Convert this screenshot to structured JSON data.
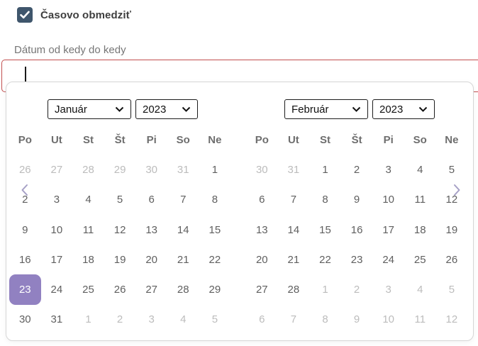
{
  "checkbox": {
    "label": "Časovo obmedziť",
    "checked": true
  },
  "field": {
    "label": "Dátum od kedy do kedy",
    "value": "",
    "placeholder": ""
  },
  "colors": {
    "checkbox_bg": "#3f566c",
    "input_error_border": "#c14f4f",
    "selected_day_bg": "#9181c1",
    "nav_chevron": "#a6a0c6",
    "muted_day": "#bcbcbc",
    "day_text": "#5f5f5f"
  },
  "datepicker": {
    "prev_label": "previous month",
    "next_label": "next month",
    "day_headers": [
      "Po",
      "Ut",
      "St",
      "Št",
      "Pi",
      "So",
      "Ne"
    ],
    "calendars": [
      {
        "month": "Január",
        "year": "2023",
        "weeks": [
          [
            {
              "day": "26",
              "outside": true
            },
            {
              "day": "27",
              "outside": true
            },
            {
              "day": "28",
              "outside": true
            },
            {
              "day": "29",
              "outside": true
            },
            {
              "day": "30",
              "outside": true
            },
            {
              "day": "31",
              "outside": true
            },
            {
              "day": "1"
            }
          ],
          [
            {
              "day": "2"
            },
            {
              "day": "3"
            },
            {
              "day": "4"
            },
            {
              "day": "5"
            },
            {
              "day": "6"
            },
            {
              "day": "7"
            },
            {
              "day": "8"
            }
          ],
          [
            {
              "day": "9"
            },
            {
              "day": "10"
            },
            {
              "day": "11"
            },
            {
              "day": "12"
            },
            {
              "day": "13"
            },
            {
              "day": "14"
            },
            {
              "day": "15"
            }
          ],
          [
            {
              "day": "16"
            },
            {
              "day": "17"
            },
            {
              "day": "18"
            },
            {
              "day": "19"
            },
            {
              "day": "20"
            },
            {
              "day": "21"
            },
            {
              "day": "22"
            }
          ],
          [
            {
              "day": "23",
              "selected": true
            },
            {
              "day": "24"
            },
            {
              "day": "25"
            },
            {
              "day": "26"
            },
            {
              "day": "27"
            },
            {
              "day": "28"
            },
            {
              "day": "29"
            }
          ],
          [
            {
              "day": "30"
            },
            {
              "day": "31"
            },
            {
              "day": "1",
              "outside": true
            },
            {
              "day": "2",
              "outside": true
            },
            {
              "day": "3",
              "outside": true
            },
            {
              "day": "4",
              "outside": true
            },
            {
              "day": "5",
              "outside": true
            }
          ]
        ]
      },
      {
        "month": "Február",
        "year": "2023",
        "weeks": [
          [
            {
              "day": "30",
              "outside": true
            },
            {
              "day": "31",
              "outside": true
            },
            {
              "day": "1"
            },
            {
              "day": "2"
            },
            {
              "day": "3"
            },
            {
              "day": "4"
            },
            {
              "day": "5"
            }
          ],
          [
            {
              "day": "6"
            },
            {
              "day": "7"
            },
            {
              "day": "8"
            },
            {
              "day": "9"
            },
            {
              "day": "10"
            },
            {
              "day": "11"
            },
            {
              "day": "12"
            }
          ],
          [
            {
              "day": "13"
            },
            {
              "day": "14"
            },
            {
              "day": "15"
            },
            {
              "day": "16"
            },
            {
              "day": "17"
            },
            {
              "day": "18"
            },
            {
              "day": "19"
            }
          ],
          [
            {
              "day": "20"
            },
            {
              "day": "21"
            },
            {
              "day": "22"
            },
            {
              "day": "23"
            },
            {
              "day": "24"
            },
            {
              "day": "25"
            },
            {
              "day": "26"
            }
          ],
          [
            {
              "day": "27"
            },
            {
              "day": "28"
            },
            {
              "day": "1",
              "outside": true
            },
            {
              "day": "2",
              "outside": true
            },
            {
              "day": "3",
              "outside": true
            },
            {
              "day": "4",
              "outside": true
            },
            {
              "day": "5",
              "outside": true
            }
          ],
          [
            {
              "day": "6",
              "outside": true
            },
            {
              "day": "7",
              "outside": true
            },
            {
              "day": "8",
              "outside": true
            },
            {
              "day": "9",
              "outside": true
            },
            {
              "day": "10",
              "outside": true
            },
            {
              "day": "11",
              "outside": true
            },
            {
              "day": "12",
              "outside": true
            }
          ]
        ]
      }
    ],
    "selected_date": "23. Január 2023"
  }
}
